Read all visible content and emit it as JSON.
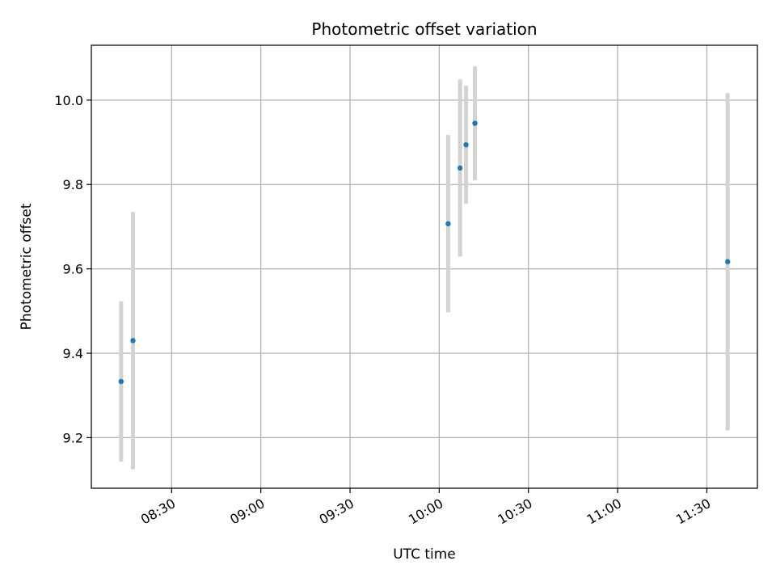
{
  "chart_data": {
    "type": "scatter",
    "title": "Photometric offset variation",
    "xlabel": "UTC time",
    "ylabel": "Photometric offset",
    "grid": true,
    "x_tick_labels": [
      "08:30",
      "09:00",
      "09:30",
      "10:00",
      "10:30",
      "11:00",
      "11:30"
    ],
    "y_tick_labels": [
      "9.2",
      "9.4",
      "9.6",
      "9.8",
      "10.0"
    ],
    "ylim": [
      9.08,
      10.13
    ],
    "xlim": [
      "08:03",
      "11:47"
    ],
    "colors": {
      "point": "#1f77b4",
      "errorbar": "#d3d3d3",
      "grid": "#b0b0b0"
    },
    "series": [
      {
        "x": [
          "08:13",
          "08:17",
          "10:03",
          "10:07",
          "10:09",
          "10:12",
          "11:37"
        ],
        "y": [
          9.333,
          9.43,
          9.707,
          9.839,
          9.894,
          9.945,
          9.617
        ],
        "yerr": [
          0.19,
          0.305,
          0.21,
          0.21,
          0.14,
          0.135,
          0.4
        ]
      }
    ]
  }
}
